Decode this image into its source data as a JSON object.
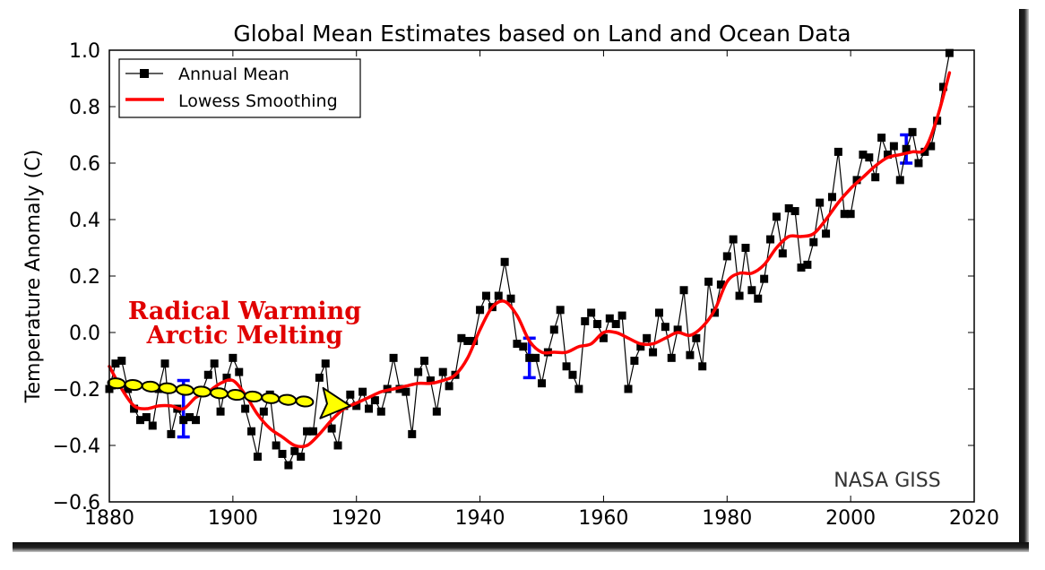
{
  "chart_data": {
    "type": "line",
    "title": "Global Mean Estimates based on Land and Ocean Data",
    "xlabel": "",
    "ylabel": "Temperature Anomaly (C)",
    "xlim": [
      1880,
      2020
    ],
    "ylim": [
      -0.6,
      1.0
    ],
    "xticks": [
      1880,
      1900,
      1920,
      1940,
      1960,
      1980,
      2000,
      2020
    ],
    "xtick_labels": [
      "1880",
      "1900",
      "1920",
      "1940",
      "1960",
      "1980",
      "2000",
      "2020"
    ],
    "yticks": [
      -0.6,
      -0.4,
      -0.2,
      0.0,
      0.2,
      0.4,
      0.6,
      0.8,
      1.0
    ],
    "ytick_labels": [
      "−0.6",
      "−0.4",
      "−0.2",
      "0.0",
      "0.2",
      "0.4",
      "0.6",
      "0.8",
      "1.0"
    ],
    "grid": false,
    "legend_position": "top-left",
    "legend": [
      {
        "name": "Annual Mean",
        "color": "#000000",
        "style": "line-square-marker"
      },
      {
        "name": "Lowess Smoothing",
        "color": "#ff0000",
        "style": "thick-line"
      }
    ],
    "series": [
      {
        "name": "Annual Mean",
        "color": "#000000",
        "x_start": 1880,
        "values": [
          -0.2,
          -0.11,
          -0.1,
          -0.2,
          -0.27,
          -0.31,
          -0.3,
          -0.33,
          -0.2,
          -0.11,
          -0.36,
          -0.27,
          -0.31,
          -0.3,
          -0.31,
          -0.21,
          -0.15,
          -0.11,
          -0.28,
          -0.16,
          -0.09,
          -0.14,
          -0.27,
          -0.35,
          -0.44,
          -0.28,
          -0.22,
          -0.4,
          -0.43,
          -0.47,
          -0.42,
          -0.44,
          -0.35,
          -0.35,
          -0.16,
          -0.11,
          -0.34,
          -0.4,
          -0.26,
          -0.22,
          -0.26,
          -0.21,
          -0.27,
          -0.24,
          -0.28,
          -0.2,
          -0.09,
          -0.2,
          -0.21,
          -0.36,
          -0.14,
          -0.1,
          -0.17,
          -0.28,
          -0.14,
          -0.19,
          -0.15,
          -0.02,
          -0.03,
          -0.03,
          0.08,
          0.13,
          0.09,
          0.13,
          0.25,
          0.12,
          -0.04,
          -0.05,
          -0.09,
          -0.09,
          -0.18,
          -0.07,
          0.01,
          0.08,
          -0.12,
          -0.15,
          -0.2,
          0.04,
          0.07,
          0.03,
          -0.02,
          0.05,
          0.03,
          0.06,
          -0.2,
          -0.1,
          -0.05,
          -0.02,
          -0.07,
          0.07,
          0.02,
          -0.09,
          0.01,
          0.15,
          -0.08,
          -0.02,
          -0.12,
          0.18,
          0.07,
          0.17,
          0.27,
          0.33,
          0.13,
          0.3,
          0.15,
          0.12,
          0.19,
          0.33,
          0.41,
          0.28,
          0.44,
          0.43,
          0.23,
          0.24,
          0.32,
          0.46,
          0.35,
          0.48,
          0.64,
          0.42,
          0.42,
          0.54,
          0.63,
          0.62,
          0.55,
          0.69,
          0.63,
          0.66,
          0.54,
          0.65,
          0.71,
          0.6,
          0.64,
          0.66,
          0.75,
          0.87,
          0.99
        ]
      },
      {
        "name": "Lowess Smoothing",
        "color": "#ff0000",
        "x": [
          1880,
          1882,
          1884,
          1886,
          1888,
          1890,
          1892,
          1894,
          1896,
          1898,
          1900,
          1902,
          1904,
          1906,
          1908,
          1910,
          1912,
          1914,
          1916,
          1918,
          1920,
          1922,
          1924,
          1926,
          1928,
          1930,
          1932,
          1934,
          1936,
          1938,
          1940,
          1942,
          1944,
          1946,
          1948,
          1950,
          1952,
          1954,
          1956,
          1958,
          1960,
          1962,
          1964,
          1966,
          1968,
          1970,
          1972,
          1974,
          1976,
          1978,
          1980,
          1982,
          1984,
          1986,
          1988,
          1990,
          1992,
          1994,
          1996,
          1998,
          2000,
          2002,
          2004,
          2006,
          2008,
          2010,
          2012,
          2014,
          2016
        ],
        "values": [
          -0.12,
          -0.2,
          -0.26,
          -0.27,
          -0.26,
          -0.26,
          -0.27,
          -0.23,
          -0.21,
          -0.18,
          -0.17,
          -0.22,
          -0.29,
          -0.34,
          -0.37,
          -0.4,
          -0.4,
          -0.36,
          -0.31,
          -0.27,
          -0.25,
          -0.23,
          -0.21,
          -0.2,
          -0.19,
          -0.18,
          -0.18,
          -0.17,
          -0.15,
          -0.09,
          0.01,
          0.09,
          0.11,
          0.06,
          -0.03,
          -0.07,
          -0.07,
          -0.07,
          -0.05,
          -0.04,
          0.0,
          0.0,
          -0.02,
          -0.04,
          -0.04,
          -0.02,
          0.0,
          -0.01,
          0.02,
          0.08,
          0.18,
          0.21,
          0.21,
          0.24,
          0.3,
          0.34,
          0.34,
          0.35,
          0.4,
          0.46,
          0.51,
          0.55,
          0.59,
          0.62,
          0.63,
          0.64,
          0.65,
          0.76,
          0.92
        ]
      }
    ],
    "error_bars": [
      {
        "x": 1892,
        "y": -0.27,
        "low": -0.37,
        "high": -0.17,
        "color": "#0000ff"
      },
      {
        "x": 1948,
        "y": -0.09,
        "low": -0.16,
        "high": -0.02,
        "color": "#0000ff"
      },
      {
        "x": 2009,
        "y": 0.65,
        "low": 0.6,
        "high": 0.7,
        "color": "#0000ff"
      }
    ],
    "annotations": {
      "callout_line1": "Radical Warming",
      "callout_line2": "Arctic Melting",
      "callout_color": "#e00000",
      "arrow": {
        "from": [
          1880,
          -0.18
        ],
        "to": [
          1919,
          -0.26
        ],
        "fill": "#ffff00",
        "stroke": "#000000"
      },
      "credit": "NASA GISS"
    }
  }
}
